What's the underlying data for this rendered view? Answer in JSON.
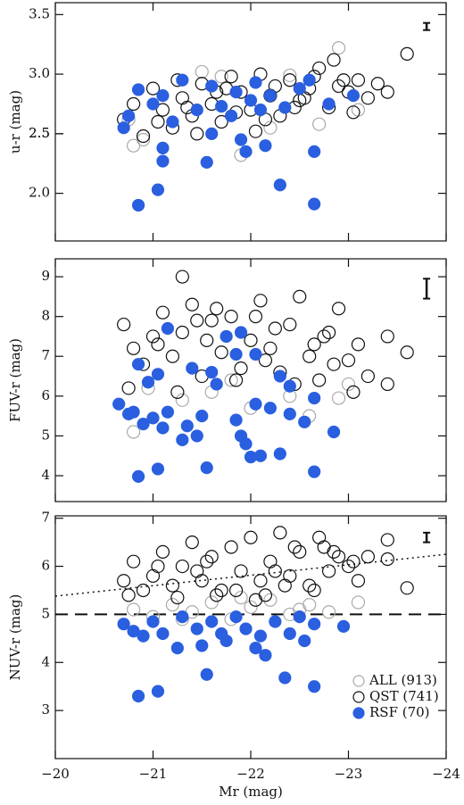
{
  "chart_data": [
    {
      "type": "scatter",
      "ylabel": "u-r (mag)",
      "xlim": [
        -20,
        -24
      ],
      "ylim": [
        1.6,
        3.6
      ],
      "xticks": [
        -20,
        -21,
        -22,
        -23,
        -24
      ],
      "yticks": [
        {
          "value": 2.0,
          "label": "2.0"
        },
        2.5,
        {
          "value": 3.0,
          "label": "3.0"
        },
        2.5,
        {
          "value": 3.5,
          "label": "3.5"
        }
      ],
      "error_bar": {
        "x": -23.8,
        "y": 3.4,
        "err": 0.03
      },
      "series": [
        {
          "color": "#aaaaaa",
          "marker": "open",
          "x": [
            -20.8,
            -20.9,
            -21.2,
            -21.5,
            -21.9,
            -22.4,
            -22.7,
            -22.9,
            -21.7,
            -22.2,
            -20.75,
            -23.1
          ],
          "y": [
            2.4,
            2.45,
            2.55,
            3.02,
            2.32,
            2.99,
            2.58,
            3.22,
            2.98,
            2.55,
            2.62,
            2.7
          ]
        },
        {
          "color": "#111111",
          "marker": "open",
          "x": [
            -20.7,
            -20.8,
            -20.9,
            -21.0,
            -21.1,
            -21.2,
            -21.3,
            -21.4,
            -21.5,
            -21.6,
            -21.7,
            -21.8,
            -21.9,
            -22.0,
            -22.1,
            -22.2,
            -22.3,
            -22.4,
            -22.5,
            -22.6,
            -22.7,
            -22.8,
            -22.9,
            -23.0,
            -23.1,
            -23.2,
            -23.3,
            -23.4,
            -23.6,
            -21.05,
            -21.25,
            -21.45,
            -21.65,
            -21.85,
            -22.05,
            -22.25,
            -22.45,
            -22.65,
            -22.85,
            -23.05,
            -21.35,
            -21.75,
            -22.15,
            -22.55,
            -22.95
          ],
          "y": [
            2.62,
            2.75,
            2.48,
            2.88,
            2.7,
            2.55,
            2.8,
            2.65,
            2.92,
            2.75,
            2.6,
            2.98,
            2.85,
            2.7,
            3.0,
            2.82,
            2.65,
            2.95,
            2.78,
            2.88,
            3.05,
            2.72,
            2.9,
            2.85,
            2.95,
            2.8,
            2.92,
            2.85,
            3.17,
            2.6,
            2.95,
            2.5,
            2.85,
            2.68,
            2.52,
            2.9,
            2.72,
            2.98,
            3.12,
            2.68,
            2.72,
            2.88,
            2.62,
            2.8,
            2.95
          ]
        },
        {
          "color": "#2a5fe0",
          "marker": "filled",
          "x": [
            -20.85,
            -21.05,
            -21.1,
            -21.55,
            -21.95,
            -22.15,
            -22.3,
            -22.65,
            -22.65,
            -21.1,
            -20.7,
            -20.75,
            -20.85,
            -21.0,
            -21.1,
            -21.2,
            -21.3,
            -21.45,
            -21.6,
            -21.7,
            -21.8,
            -21.85,
            -22.0,
            -22.05,
            -22.1,
            -22.2,
            -22.35,
            -22.5,
            -22.6,
            -22.8,
            -23.05,
            -21.9,
            -21.6
          ],
          "y": [
            1.9,
            2.03,
            2.27,
            2.26,
            2.35,
            2.4,
            2.07,
            1.91,
            2.35,
            2.38,
            2.55,
            2.65,
            2.87,
            2.75,
            2.82,
            2.6,
            2.95,
            2.7,
            2.9,
            2.73,
            2.65,
            2.85,
            2.78,
            2.93,
            2.7,
            2.82,
            2.72,
            2.88,
            2.95,
            2.75,
            2.82,
            2.45,
            2.5
          ]
        }
      ]
    },
    {
      "type": "scatter",
      "ylabel": "FUV-r (mag)",
      "xlim": [
        -20,
        -24
      ],
      "ylim": [
        3.35,
        9.45
      ],
      "xticks": [
        -20,
        -21,
        -22,
        -23,
        -24
      ],
      "yticks": [
        4,
        5,
        6,
        7,
        8,
        9
      ],
      "error_bar": {
        "x": -23.8,
        "y": 8.7,
        "err": 0.25
      },
      "series": [
        {
          "color": "#aaaaaa",
          "marker": "open",
          "x": [
            -20.8,
            -20.95,
            -21.3,
            -21.6,
            -22.0,
            -22.4,
            -22.9,
            -23.0,
            -21.8,
            -22.6
          ],
          "y": [
            5.1,
            6.2,
            5.9,
            6.1,
            5.7,
            6.0,
            5.95,
            6.3,
            6.4,
            5.5
          ]
        },
        {
          "color": "#111111",
          "marker": "open",
          "x": [
            -20.7,
            -20.8,
            -20.9,
            -21.0,
            -21.1,
            -21.2,
            -21.3,
            -21.4,
            -21.5,
            -21.6,
            -21.7,
            -21.8,
            -21.9,
            -22.0,
            -22.1,
            -22.2,
            -22.3,
            -22.4,
            -22.5,
            -22.6,
            -22.7,
            -22.8,
            -22.9,
            -23.0,
            -23.1,
            -23.2,
            -23.4,
            -23.6,
            -21.3,
            -20.75,
            -21.05,
            -21.25,
            -21.45,
            -21.65,
            -21.85,
            -22.05,
            -22.25,
            -22.45,
            -22.65,
            -22.85,
            -23.05,
            -23.4,
            -21.55,
            -22.15,
            -22.75
          ],
          "y": [
            7.8,
            7.2,
            6.8,
            7.5,
            8.1,
            7.0,
            7.6,
            8.3,
            6.5,
            7.9,
            7.1,
            8.0,
            6.7,
            7.4,
            8.4,
            7.2,
            6.6,
            7.8,
            8.5,
            7.0,
            6.4,
            7.6,
            8.2,
            6.9,
            7.3,
            6.5,
            7.5,
            7.1,
            9.0,
            6.2,
            7.3,
            6.1,
            7.9,
            8.2,
            6.4,
            8.0,
            7.7,
            6.3,
            7.3,
            6.8,
            6.1,
            6.3,
            7.4,
            6.9,
            7.5
          ]
        },
        {
          "color": "#2a5fe0",
          "marker": "filled",
          "x": [
            -20.85,
            -21.05,
            -21.55,
            -22.0,
            -22.1,
            -22.3,
            -22.65,
            -20.65,
            -20.75,
            -20.8,
            -20.9,
            -21.0,
            -21.15,
            -21.1,
            -21.3,
            -21.35,
            -21.5,
            -21.45,
            -21.85,
            -21.9,
            -21.95,
            -22.05,
            -22.2,
            -22.4,
            -22.55,
            -22.85,
            -20.85,
            -20.95,
            -21.05,
            -21.15,
            -21.6,
            -21.65,
            -21.75,
            -21.85,
            -22.05,
            -22.3,
            -22.4,
            -22.65,
            -21.9,
            -21.4
          ],
          "y": [
            3.98,
            4.17,
            4.2,
            4.47,
            4.5,
            4.55,
            4.1,
            5.8,
            5.55,
            5.6,
            5.3,
            5.45,
            5.6,
            5.2,
            4.9,
            5.25,
            5.5,
            5.0,
            5.4,
            5.0,
            4.8,
            5.8,
            5.7,
            5.55,
            5.35,
            5.1,
            6.8,
            6.35,
            6.55,
            7.7,
            6.6,
            6.3,
            7.5,
            7.05,
            7.05,
            6.5,
            6.25,
            5.95,
            7.6,
            6.7
          ]
        }
      ]
    },
    {
      "type": "scatter",
      "ylabel": "NUV-r (mag)",
      "xlabel": "Mr (mag)",
      "xlim": [
        -20,
        -24
      ],
      "ylim": [
        2.0,
        7.05
      ],
      "xticks": [
        {
          "value": -20,
          "label": "−20"
        },
        {
          "value": -21,
          "label": "−21"
        },
        {
          "value": -22,
          "label": "−22"
        },
        {
          "value": -23,
          "label": "−23"
        },
        {
          "value": -24,
          "label": "−24"
        }
      ],
      "yticks": [
        3,
        4,
        5,
        6,
        7
      ],
      "error_bar": {
        "x": -23.8,
        "y": 6.6,
        "err": 0.1
      },
      "hline": 5,
      "fit_line": {
        "x": [
          -20,
          -24
        ],
        "y": [
          5.38,
          6.25
        ]
      },
      "series": [
        {
          "name": "ALL (913)",
          "color": "#aaaaaa",
          "marker": "open",
          "x": [
            -20.8,
            -21.0,
            -21.2,
            -21.4,
            -21.6,
            -21.8,
            -22.0,
            -22.2,
            -22.4,
            -22.6,
            -22.8,
            -23.1,
            -21.3,
            -21.9,
            -22.5
          ],
          "y": [
            5.1,
            4.95,
            5.2,
            5.05,
            5.25,
            4.9,
            5.15,
            5.3,
            5.0,
            5.2,
            5.05,
            5.25,
            4.9,
            5.35,
            5.1
          ]
        },
        {
          "name": "QST (741)",
          "color": "#111111",
          "marker": "open",
          "x": [
            -20.7,
            -20.8,
            -20.9,
            -21.0,
            -21.1,
            -21.2,
            -21.3,
            -21.4,
            -21.5,
            -21.6,
            -21.7,
            -21.8,
            -21.9,
            -22.0,
            -22.1,
            -22.2,
            -22.3,
            -22.4,
            -22.5,
            -22.6,
            -22.7,
            -22.8,
            -22.9,
            -23.0,
            -23.1,
            -23.2,
            -23.4,
            -23.6,
            -23.4,
            -20.75,
            -21.05,
            -21.25,
            -21.45,
            -21.65,
            -21.85,
            -22.05,
            -22.25,
            -22.45,
            -22.65,
            -22.85,
            -23.05,
            -21.55,
            -22.15,
            -22.75,
            -22.35
          ],
          "y": [
            5.7,
            6.1,
            5.5,
            5.8,
            6.3,
            5.6,
            6.0,
            6.5,
            5.7,
            6.2,
            5.5,
            6.4,
            5.9,
            6.6,
            5.7,
            6.1,
            6.7,
            5.8,
            6.3,
            5.6,
            6.6,
            5.9,
            6.2,
            6.0,
            5.7,
            6.2,
            6.55,
            5.55,
            6.15,
            5.4,
            6.0,
            5.35,
            5.9,
            5.4,
            5.5,
            5.3,
            5.9,
            6.4,
            5.5,
            6.3,
            6.1,
            6.1,
            5.4,
            6.4,
            5.6
          ]
        },
        {
          "name": "RSF (70)",
          "color": "#2a5fe0",
          "marker": "filled",
          "x": [
            -20.85,
            -21.05,
            -21.55,
            -22.35,
            -22.65,
            -21.25,
            -21.5,
            -21.75,
            -22.05,
            -22.15,
            -20.7,
            -20.8,
            -20.9,
            -21.0,
            -21.1,
            -21.3,
            -21.45,
            -21.6,
            -21.7,
            -21.85,
            -21.95,
            -22.1,
            -22.25,
            -22.4,
            -22.55,
            -22.65,
            -22.95,
            -22.5
          ],
          "y": [
            3.3,
            3.4,
            3.75,
            3.68,
            3.5,
            4.3,
            4.35,
            4.45,
            4.3,
            4.15,
            4.8,
            4.65,
            4.55,
            4.85,
            4.6,
            4.95,
            4.7,
            4.85,
            4.6,
            4.95,
            4.7,
            4.55,
            4.85,
            4.6,
            4.45,
            4.8,
            4.75,
            4.95
          ]
        }
      ]
    }
  ]
}
